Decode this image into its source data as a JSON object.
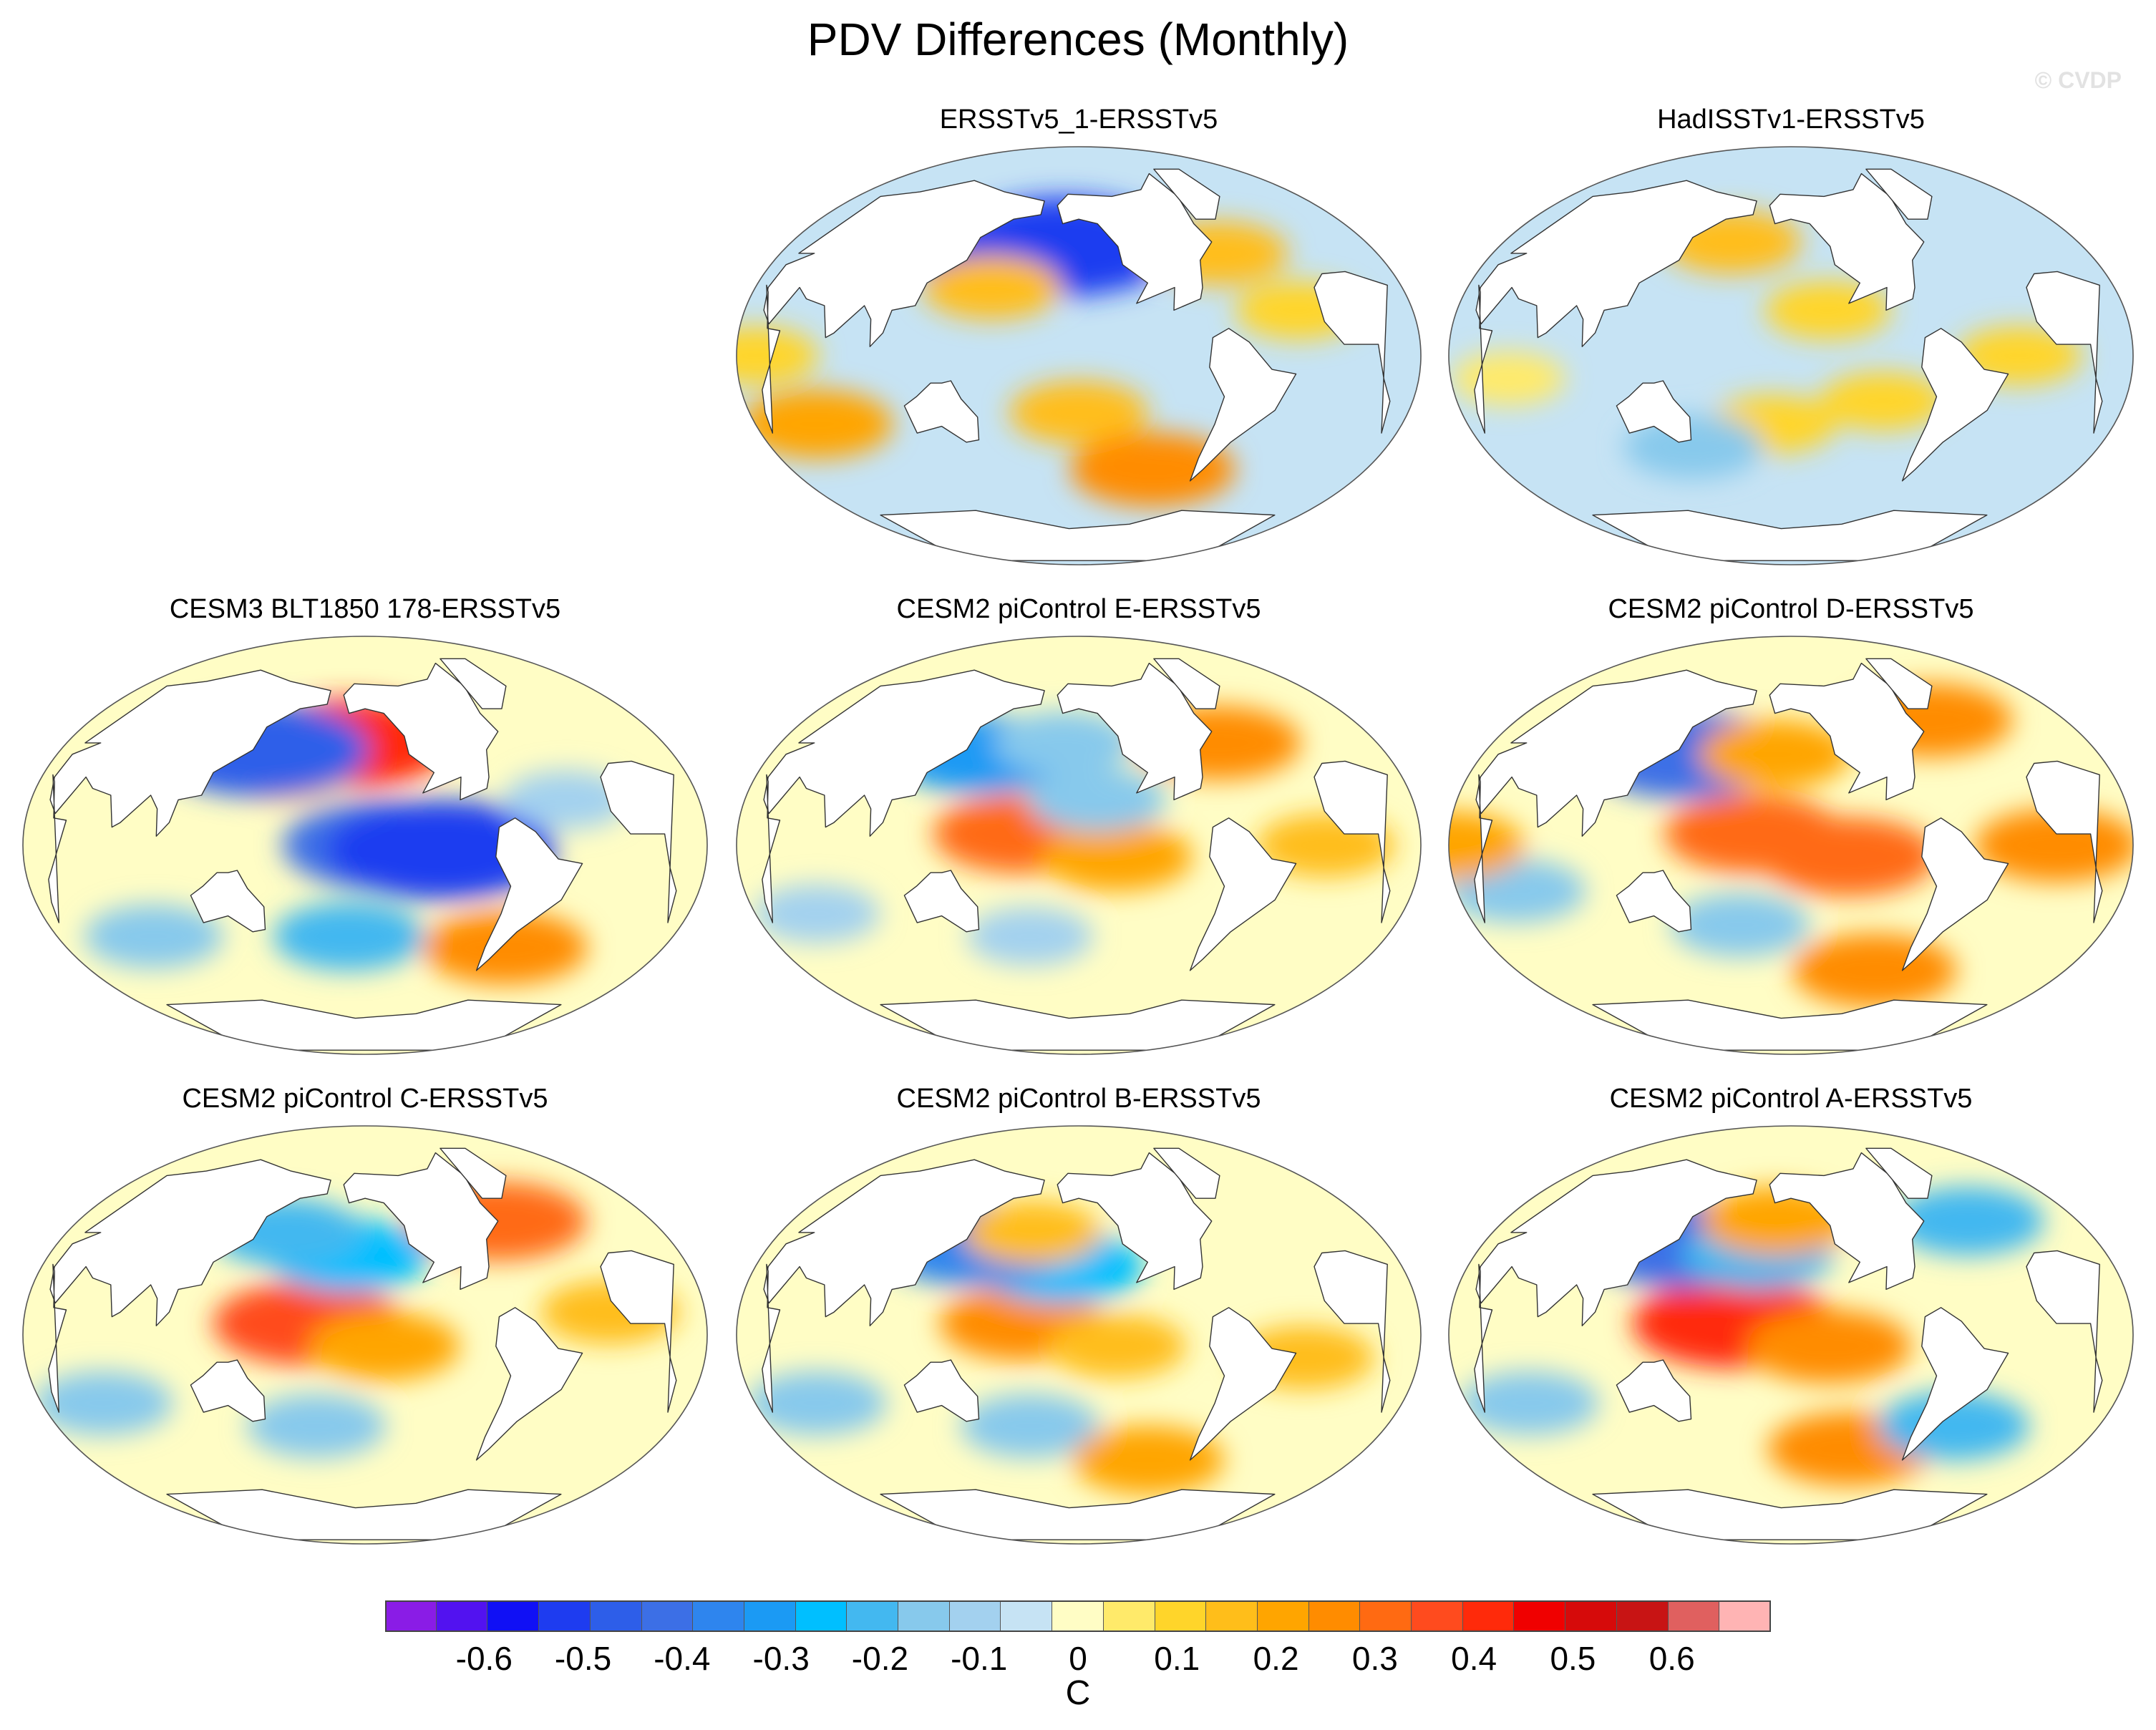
{
  "figure": {
    "title": "PDV Differences (Monthly)",
    "credit": "© CVDP"
  },
  "panels": [
    {
      "title": "ERSSTv5_1-ERSSTv5",
      "base": "light_blue",
      "blobs": [
        {
          "lon": 170,
          "lat": 45,
          "value": -0.4
        },
        {
          "lon": 200,
          "lat": 48,
          "value": -0.5
        },
        {
          "lon": 160,
          "lat": 30,
          "value": 0.15
        },
        {
          "lon": 300,
          "lat": 45,
          "value": 0.15
        },
        {
          "lon": 210,
          "lat": -25,
          "value": 0.15
        },
        {
          "lon": 260,
          "lat": -50,
          "value": 0.25
        },
        {
          "lon": 60,
          "lat": -30,
          "value": 0.2
        },
        {
          "lon": 330,
          "lat": 20,
          "value": 0.1
        },
        {
          "lon": 40,
          "lat": 0,
          "value": 0.1
        }
      ]
    },
    {
      "title": "HadISSTv1-ERSSTv5",
      "base": "light_blue",
      "blobs": [
        {
          "lon": 170,
          "lat": 50,
          "value": 0.15
        },
        {
          "lon": 230,
          "lat": 20,
          "value": 0.1
        },
        {
          "lon": 200,
          "lat": -30,
          "value": 0.1
        },
        {
          "lon": 260,
          "lat": -20,
          "value": 0.1
        },
        {
          "lon": 330,
          "lat": 0,
          "value": 0.1
        },
        {
          "lon": 60,
          "lat": -10,
          "value": 0.05
        },
        {
          "lon": 150,
          "lat": -40,
          "value": -0.15
        }
      ]
    },
    {
      "title": "CESM3 BLT1850 178-ERSSTv5",
      "base": "light_yellow",
      "blobs": [
        {
          "lon": 200,
          "lat": 45,
          "value": 0.4
        },
        {
          "lon": 160,
          "lat": 35,
          "value": 0.2
        },
        {
          "lon": 220,
          "lat": 0,
          "value": -0.4
        },
        {
          "lon": 250,
          "lat": -2,
          "value": -0.5
        },
        {
          "lon": 145,
          "lat": 42,
          "value": -0.45
        },
        {
          "lon": 80,
          "lat": -40,
          "value": -0.15
        },
        {
          "lon": 200,
          "lat": -40,
          "value": -0.2
        },
        {
          "lon": 300,
          "lat": -45,
          "value": 0.25
        },
        {
          "lon": 320,
          "lat": 20,
          "value": -0.1
        }
      ]
    },
    {
      "title": "CESM2 piControl E-ERSSTv5",
      "base": "light_yellow",
      "blobs": [
        {
          "lon": 180,
          "lat": 5,
          "value": 0.3
        },
        {
          "lon": 230,
          "lat": -5,
          "value": 0.2
        },
        {
          "lon": 150,
          "lat": 40,
          "value": -0.3
        },
        {
          "lon": 200,
          "lat": 45,
          "value": -0.15
        },
        {
          "lon": 220,
          "lat": 20,
          "value": -0.15
        },
        {
          "lon": 300,
          "lat": 45,
          "value": 0.25
        },
        {
          "lon": 60,
          "lat": -30,
          "value": -0.1
        },
        {
          "lon": 180,
          "lat": -40,
          "value": -0.1
        },
        {
          "lon": 340,
          "lat": 0,
          "value": 0.15
        }
      ]
    },
    {
      "title": "CESM2 piControl D-ERSSTv5",
      "base": "light_yellow",
      "blobs": [
        {
          "lon": 190,
          "lat": 5,
          "value": 0.3
        },
        {
          "lon": 240,
          "lat": -5,
          "value": 0.3
        },
        {
          "lon": 145,
          "lat": 40,
          "value": -0.4
        },
        {
          "lon": 200,
          "lat": 40,
          "value": 0.2
        },
        {
          "lon": 180,
          "lat": -35,
          "value": -0.15
        },
        {
          "lon": 60,
          "lat": -20,
          "value": -0.15
        },
        {
          "lon": 350,
          "lat": 0,
          "value": 0.25
        },
        {
          "lon": 30,
          "lat": 0,
          "value": 0.2
        },
        {
          "lon": 270,
          "lat": -55,
          "value": 0.25
        },
        {
          "lon": 310,
          "lat": 55,
          "value": 0.25
        }
      ]
    },
    {
      "title": "CESM2 piControl C-ERSSTv5",
      "base": "light_yellow",
      "blobs": [
        {
          "lon": 180,
          "lat": 5,
          "value": 0.35
        },
        {
          "lon": 220,
          "lat": -5,
          "value": 0.2
        },
        {
          "lon": 200,
          "lat": 35,
          "value": -0.25
        },
        {
          "lon": 160,
          "lat": 45,
          "value": -0.2
        },
        {
          "lon": 300,
          "lat": 50,
          "value": 0.3
        },
        {
          "lon": 60,
          "lat": -30,
          "value": -0.15
        },
        {
          "lon": 180,
          "lat": -40,
          "value": -0.15
        },
        {
          "lon": 340,
          "lat": 10,
          "value": 0.15
        }
      ]
    },
    {
      "title": "CESM2 piControl B-ERSSTv5",
      "base": "light_yellow",
      "blobs": [
        {
          "lon": 180,
          "lat": 5,
          "value": 0.25
        },
        {
          "lon": 230,
          "lat": -5,
          "value": 0.15
        },
        {
          "lon": 200,
          "lat": 30,
          "value": -0.25
        },
        {
          "lon": 145,
          "lat": 40,
          "value": -0.35
        },
        {
          "lon": 180,
          "lat": 45,
          "value": 0.15
        },
        {
          "lon": 330,
          "lat": -10,
          "value": 0.15
        },
        {
          "lon": 60,
          "lat": -30,
          "value": -0.15
        },
        {
          "lon": 180,
          "lat": -40,
          "value": -0.15
        },
        {
          "lon": 260,
          "lat": -55,
          "value": 0.2
        }
      ]
    },
    {
      "title": "CESM2 piControl A-ERSSTv5",
      "base": "light_yellow",
      "blobs": [
        {
          "lon": 180,
          "lat": 5,
          "value": 0.4
        },
        {
          "lon": 230,
          "lat": -5,
          "value": 0.25
        },
        {
          "lon": 145,
          "lat": 40,
          "value": -0.4
        },
        {
          "lon": 190,
          "lat": 35,
          "value": -0.2
        },
        {
          "lon": 200,
          "lat": 50,
          "value": 0.2
        },
        {
          "lon": 250,
          "lat": -50,
          "value": 0.25
        },
        {
          "lon": 60,
          "lat": -30,
          "value": -0.15
        },
        {
          "lon": 330,
          "lat": 50,
          "value": -0.2
        },
        {
          "lon": 310,
          "lat": -40,
          "value": -0.2
        }
      ]
    }
  ],
  "colorbar": {
    "unit": "C",
    "labels": [
      "-0.6",
      "-0.5",
      "-0.4",
      "-0.3",
      "-0.2",
      "-0.1",
      "0",
      "0.1",
      "0.2",
      "0.3",
      "0.4",
      "0.5",
      "0.6"
    ],
    "label_values": [
      -0.6,
      -0.5,
      -0.4,
      -0.3,
      -0.2,
      -0.1,
      0,
      0.1,
      0.2,
      0.3,
      0.4,
      0.5,
      0.6
    ],
    "min": -0.7,
    "max": 0.7,
    "colors": [
      "#8a1ce6",
      "#5212f0",
      "#1010f5",
      "#1e3cf0",
      "#2d5ee9",
      "#3c6fe6",
      "#2e85ee",
      "#1b9af4",
      "#00bfff",
      "#43b8f0",
      "#87c9ec",
      "#a3d1ef",
      "#c6e3f4",
      "#fffdc5",
      "#ffea6a",
      "#ffd52a",
      "#ffbe1a",
      "#ffa500",
      "#ff8c00",
      "#ff6a12",
      "#ff4b1e",
      "#ff2a0a",
      "#f00000",
      "#d60a0a",
      "#c81414",
      "#e0605f",
      "#ffb4b4"
    ]
  },
  "legend_colors": {
    "land": "#ffffff",
    "light_blue": "#c6e3f4",
    "light_yellow": "#fffdc5"
  }
}
